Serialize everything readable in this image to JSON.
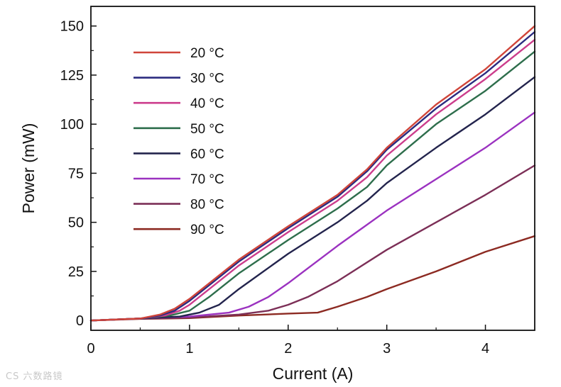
{
  "chart_data": {
    "type": "line",
    "xlabel": "Current (A)",
    "ylabel": "Power (mW)",
    "xlim": [
      0,
      4.5
    ],
    "ylim": [
      -5,
      160
    ],
    "xticks": [
      0,
      1,
      2,
      3,
      4
    ],
    "yticks": [
      0,
      25,
      50,
      75,
      100,
      125,
      150
    ],
    "legend_position": "upper-left",
    "series": [
      {
        "name": "20 °C",
        "color": "#d0453a",
        "points": [
          [
            0,
            0
          ],
          [
            0.5,
            1
          ],
          [
            0.7,
            3
          ],
          [
            0.85,
            6
          ],
          [
            1.0,
            11
          ],
          [
            1.2,
            19
          ],
          [
            1.5,
            31
          ],
          [
            2.0,
            48
          ],
          [
            2.5,
            64
          ],
          [
            2.8,
            77
          ],
          [
            3.0,
            88
          ],
          [
            3.5,
            110
          ],
          [
            4.0,
            128
          ],
          [
            4.5,
            150
          ]
        ]
      },
      {
        "name": "30 °C",
        "color": "#2b2b80",
        "points": [
          [
            0,
            0
          ],
          [
            0.5,
            1
          ],
          [
            0.7,
            2.5
          ],
          [
            0.85,
            5
          ],
          [
            1.0,
            10
          ],
          [
            1.2,
            18
          ],
          [
            1.5,
            30
          ],
          [
            2.0,
            47
          ],
          [
            2.5,
            63
          ],
          [
            2.8,
            76
          ],
          [
            3.0,
            87
          ],
          [
            3.5,
            108
          ],
          [
            4.0,
            126
          ],
          [
            4.5,
            147
          ]
        ]
      },
      {
        "name": "40 °C",
        "color": "#cc3d8c",
        "points": [
          [
            0,
            0
          ],
          [
            0.5,
            1
          ],
          [
            0.75,
            2.5
          ],
          [
            0.9,
            5
          ],
          [
            1.0,
            8
          ],
          [
            1.2,
            16
          ],
          [
            1.5,
            28
          ],
          [
            2.0,
            45
          ],
          [
            2.5,
            61
          ],
          [
            2.8,
            73
          ],
          [
            3.0,
            84
          ],
          [
            3.5,
            105
          ],
          [
            4.0,
            123
          ],
          [
            4.5,
            143
          ]
        ]
      },
      {
        "name": "50 °C",
        "color": "#2e6e4c",
        "points": [
          [
            0,
            0
          ],
          [
            0.5,
            1
          ],
          [
            0.8,
            2.5
          ],
          [
            1.0,
            5
          ],
          [
            1.2,
            12
          ],
          [
            1.5,
            24
          ],
          [
            2.0,
            41
          ],
          [
            2.5,
            57
          ],
          [
            2.8,
            68
          ],
          [
            3.0,
            79
          ],
          [
            3.5,
            100
          ],
          [
            4.0,
            117
          ],
          [
            4.5,
            137
          ]
        ]
      },
      {
        "name": "60 °C",
        "color": "#23244d",
        "points": [
          [
            0,
            0
          ],
          [
            0.5,
            1
          ],
          [
            0.9,
            2
          ],
          [
            1.1,
            4
          ],
          [
            1.3,
            8
          ],
          [
            1.5,
            16
          ],
          [
            2.0,
            34
          ],
          [
            2.5,
            50
          ],
          [
            2.8,
            61
          ],
          [
            3.0,
            70
          ],
          [
            3.5,
            88
          ],
          [
            4.0,
            105
          ],
          [
            4.5,
            124
          ]
        ]
      },
      {
        "name": "70 °C",
        "color": "#9b32c0",
        "points": [
          [
            0,
            0
          ],
          [
            0.5,
            1
          ],
          [
            1.0,
            2
          ],
          [
            1.4,
            4
          ],
          [
            1.6,
            7
          ],
          [
            1.8,
            12
          ],
          [
            2.0,
            19
          ],
          [
            2.5,
            38
          ],
          [
            3.0,
            56
          ],
          [
            3.5,
            72
          ],
          [
            4.0,
            88
          ],
          [
            4.5,
            106
          ]
        ]
      },
      {
        "name": "80 °C",
        "color": "#7c2f57",
        "points": [
          [
            0,
            0
          ],
          [
            0.5,
            1
          ],
          [
            1.0,
            1.5
          ],
          [
            1.5,
            3
          ],
          [
            1.8,
            5
          ],
          [
            2.0,
            8
          ],
          [
            2.2,
            12
          ],
          [
            2.5,
            20
          ],
          [
            3.0,
            36
          ],
          [
            3.5,
            50
          ],
          [
            4.0,
            64
          ],
          [
            4.5,
            79
          ]
        ]
      },
      {
        "name": "90 °C",
        "color": "#8c2a22",
        "points": [
          [
            0,
            0
          ],
          [
            0.5,
            0.8
          ],
          [
            1.0,
            1.2
          ],
          [
            1.5,
            2.5
          ],
          [
            2.0,
            3.5
          ],
          [
            2.3,
            4
          ],
          [
            2.5,
            7
          ],
          [
            2.8,
            12
          ],
          [
            3.0,
            16
          ],
          [
            3.5,
            25
          ],
          [
            4.0,
            35
          ],
          [
            4.5,
            43
          ]
        ]
      }
    ]
  },
  "watermark": "CS 六数路镜"
}
